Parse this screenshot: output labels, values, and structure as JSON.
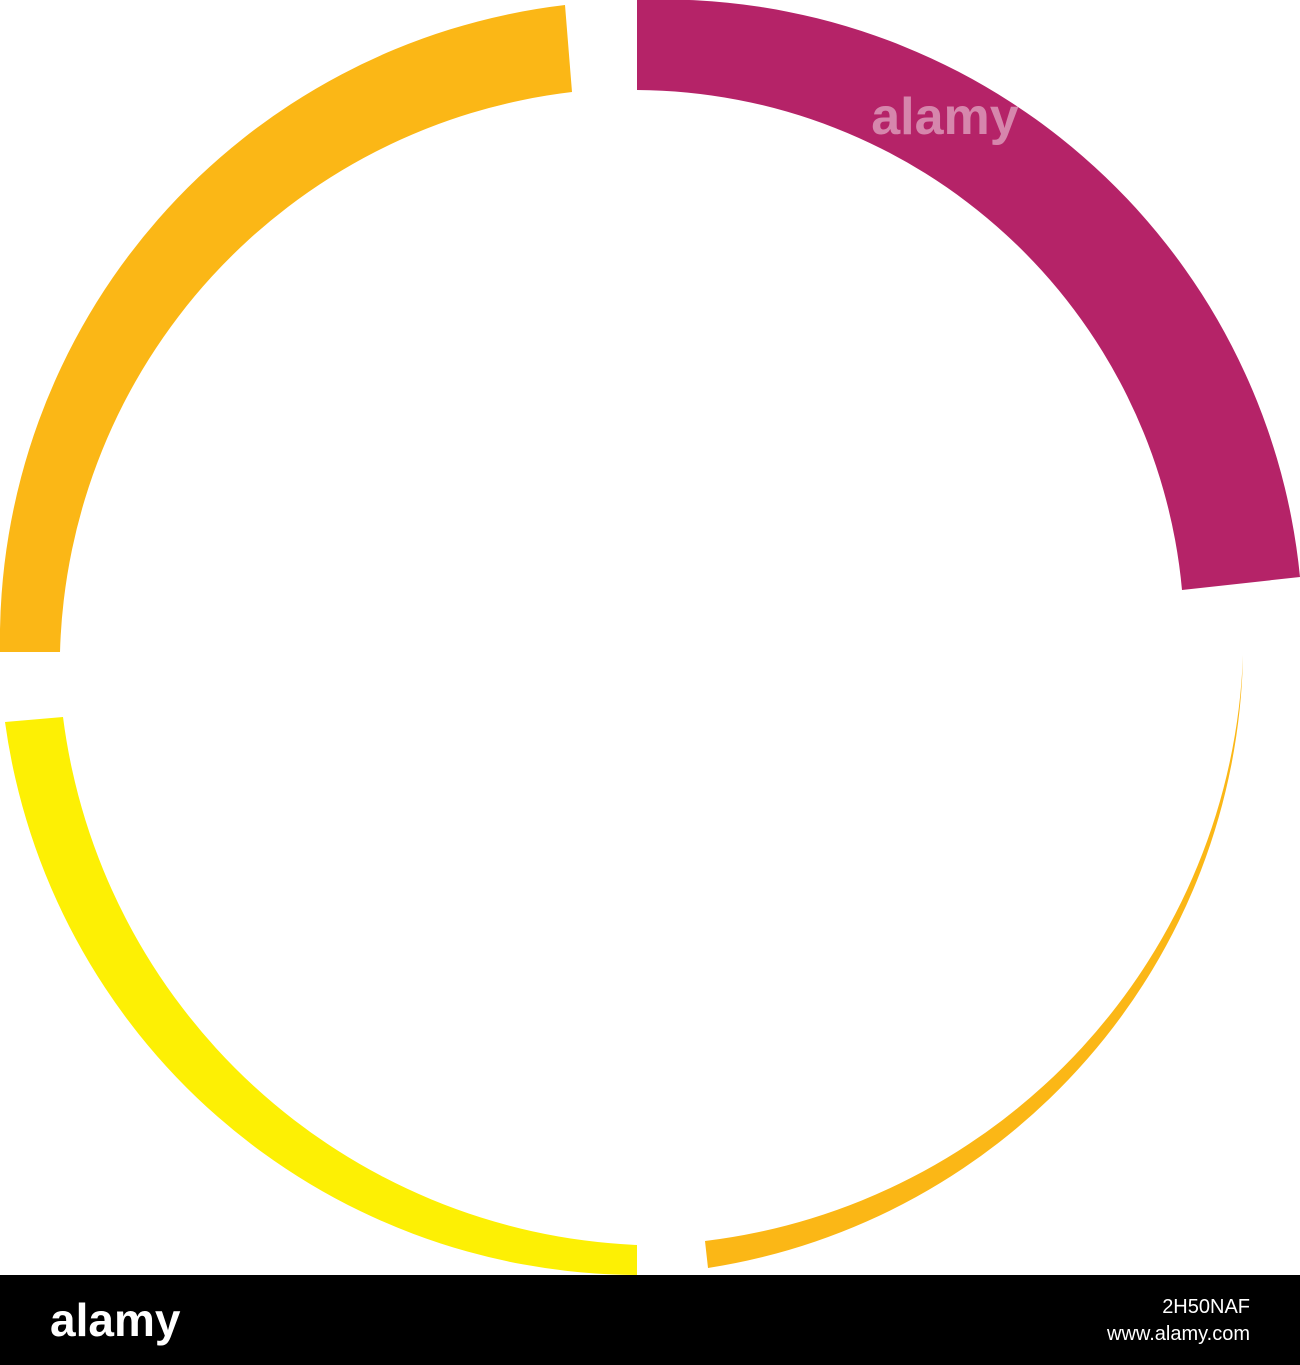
{
  "watermark": "alamy",
  "footer": {
    "logo": "alamy",
    "image_id": "2H50NAF",
    "url": "www.alamy.com"
  }
}
